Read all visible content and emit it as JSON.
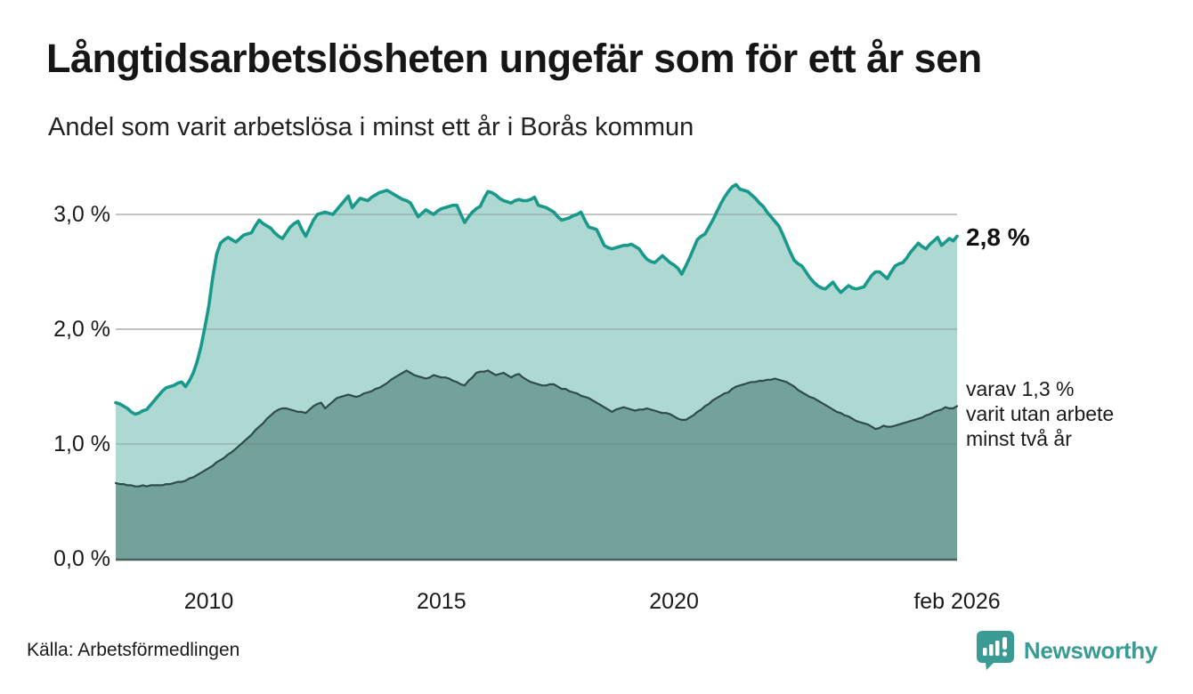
{
  "header": {
    "title": "Långtidsarbetslösheten ungefär som för ett år sen",
    "subtitle": "Andel som varit arbetslösa i minst ett år i Borås kommun"
  },
  "annotations": {
    "latest_total": "2,8 %",
    "secondary_line1": "varav 1,3 %",
    "secondary_line2": "varit utan arbete",
    "secondary_line3": "minst två år"
  },
  "footer": {
    "source": "Källa: Arbetsförmedlingen",
    "brand_name": "Newsworthy",
    "brand_icon": "newsworthy-speech-bubble-bar-chart-icon"
  },
  "colors": {
    "accent_line": "#18998b",
    "fill_light": "#aed8d2",
    "fill_dark": "#73a29b",
    "stroke_dark": "#2e4d49",
    "gridline": "#d9d9d9",
    "gridline_overlay": "rgba(105,120,117,0.38)",
    "axis_baseline": "#4f5f5b",
    "text": "#1a1a1a",
    "brand": "#3a9a94"
  },
  "chart_data": {
    "type": "area",
    "title": "Långtidsarbetslösheten ungefär som för ett år sen",
    "subtitle": "Andel som varit arbetslösa i minst ett år i Borås kommun",
    "x_start": "2008-01",
    "x_end": "2026-02",
    "x_frequency": "monthly",
    "ylim": [
      0,
      3.4
    ],
    "grid": "horizontal-only",
    "legend_position": "right-annotations",
    "y_ticks": [
      {
        "label": "0,0 %",
        "value": 0
      },
      {
        "label": "1,0 %",
        "value": 1
      },
      {
        "label": "2,0 %",
        "value": 2
      },
      {
        "label": "3,0 %",
        "value": 3
      }
    ],
    "x_ticks": [
      {
        "label": "2010",
        "month_index": 24
      },
      {
        "label": "2015",
        "month_index": 84
      },
      {
        "label": "2020",
        "month_index": 144
      },
      {
        "label": "feb 2026",
        "month_index": 217
      }
    ],
    "series": [
      {
        "name": "Arbetslösa minst ett år",
        "latest_value": 2.8,
        "values": [
          1.36,
          1.35,
          1.33,
          1.31,
          1.28,
          1.26,
          1.27,
          1.29,
          1.3,
          1.34,
          1.38,
          1.42,
          1.46,
          1.49,
          1.5,
          1.51,
          1.53,
          1.54,
          1.5,
          1.55,
          1.62,
          1.72,
          1.85,
          2.02,
          2.2,
          2.45,
          2.65,
          2.75,
          2.78,
          2.8,
          2.78,
          2.76,
          2.79,
          2.82,
          2.83,
          2.84,
          2.9,
          2.95,
          2.92,
          2.9,
          2.88,
          2.84,
          2.81,
          2.79,
          2.84,
          2.89,
          2.92,
          2.94,
          2.87,
          2.81,
          2.88,
          2.95,
          3.0,
          3.01,
          3.02,
          3.01,
          3.0,
          3.04,
          3.08,
          3.12,
          3.16,
          3.06,
          3.1,
          3.14,
          3.13,
          3.12,
          3.15,
          3.17,
          3.19,
          3.2,
          3.21,
          3.19,
          3.17,
          3.15,
          3.13,
          3.12,
          3.1,
          3.04,
          2.98,
          3.01,
          3.04,
          3.02,
          3.0,
          3.03,
          3.05,
          3.06,
          3.07,
          3.08,
          3.08,
          3.0,
          2.93,
          2.98,
          3.02,
          3.05,
          3.07,
          3.14,
          3.2,
          3.19,
          3.17,
          3.14,
          3.12,
          3.11,
          3.1,
          3.12,
          3.13,
          3.12,
          3.12,
          3.13,
          3.15,
          3.08,
          3.07,
          3.06,
          3.04,
          3.02,
          2.98,
          2.95,
          2.96,
          2.97,
          2.99,
          3.0,
          3.02,
          2.95,
          2.89,
          2.88,
          2.87,
          2.8,
          2.73,
          2.71,
          2.7,
          2.71,
          2.72,
          2.73,
          2.73,
          2.74,
          2.72,
          2.7,
          2.65,
          2.61,
          2.59,
          2.58,
          2.61,
          2.64,
          2.61,
          2.58,
          2.56,
          2.53,
          2.48,
          2.55,
          2.62,
          2.7,
          2.78,
          2.81,
          2.83,
          2.89,
          2.95,
          3.02,
          3.09,
          3.15,
          3.2,
          3.24,
          3.26,
          3.22,
          3.21,
          3.2,
          3.17,
          3.14,
          3.1,
          3.07,
          3.02,
          2.98,
          2.94,
          2.9,
          2.83,
          2.75,
          2.67,
          2.6,
          2.57,
          2.55,
          2.5,
          2.45,
          2.41,
          2.38,
          2.36,
          2.35,
          2.38,
          2.41,
          2.36,
          2.32,
          2.35,
          2.38,
          2.36,
          2.35,
          2.36,
          2.37,
          2.42,
          2.47,
          2.5,
          2.5,
          2.47,
          2.44,
          2.5,
          2.55,
          2.57,
          2.58,
          2.62,
          2.67,
          2.71,
          2.75,
          2.72,
          2.7,
          2.74,
          2.77,
          2.8,
          2.73,
          2.76,
          2.79,
          2.77,
          2.81
        ]
      },
      {
        "name": "varav utan arbete minst två år",
        "latest_value": 1.3,
        "values": [
          0.66,
          0.65,
          0.65,
          0.64,
          0.64,
          0.63,
          0.63,
          0.64,
          0.63,
          0.64,
          0.64,
          0.64,
          0.64,
          0.65,
          0.65,
          0.66,
          0.67,
          0.67,
          0.68,
          0.7,
          0.71,
          0.73,
          0.75,
          0.77,
          0.79,
          0.81,
          0.84,
          0.86,
          0.88,
          0.91,
          0.93,
          0.96,
          0.99,
          1.02,
          1.05,
          1.08,
          1.12,
          1.15,
          1.18,
          1.22,
          1.25,
          1.28,
          1.3,
          1.31,
          1.31,
          1.3,
          1.29,
          1.28,
          1.28,
          1.27,
          1.3,
          1.33,
          1.35,
          1.36,
          1.31,
          1.34,
          1.37,
          1.4,
          1.41,
          1.42,
          1.43,
          1.42,
          1.41,
          1.42,
          1.44,
          1.45,
          1.46,
          1.48,
          1.49,
          1.51,
          1.53,
          1.56,
          1.58,
          1.6,
          1.62,
          1.64,
          1.62,
          1.6,
          1.59,
          1.58,
          1.57,
          1.58,
          1.6,
          1.59,
          1.58,
          1.58,
          1.57,
          1.55,
          1.54,
          1.52,
          1.51,
          1.55,
          1.58,
          1.62,
          1.63,
          1.63,
          1.64,
          1.62,
          1.6,
          1.61,
          1.62,
          1.6,
          1.58,
          1.6,
          1.61,
          1.58,
          1.56,
          1.54,
          1.53,
          1.52,
          1.51,
          1.51,
          1.52,
          1.52,
          1.5,
          1.48,
          1.48,
          1.46,
          1.45,
          1.44,
          1.42,
          1.41,
          1.4,
          1.38,
          1.36,
          1.34,
          1.32,
          1.3,
          1.28,
          1.3,
          1.31,
          1.32,
          1.31,
          1.3,
          1.29,
          1.3,
          1.3,
          1.31,
          1.3,
          1.29,
          1.28,
          1.27,
          1.27,
          1.26,
          1.24,
          1.22,
          1.21,
          1.21,
          1.23,
          1.25,
          1.28,
          1.3,
          1.33,
          1.35,
          1.38,
          1.4,
          1.42,
          1.44,
          1.45,
          1.48,
          1.5,
          1.51,
          1.52,
          1.53,
          1.54,
          1.54,
          1.55,
          1.55,
          1.56,
          1.56,
          1.57,
          1.56,
          1.55,
          1.54,
          1.52,
          1.5,
          1.47,
          1.45,
          1.43,
          1.41,
          1.4,
          1.38,
          1.36,
          1.34,
          1.32,
          1.3,
          1.28,
          1.27,
          1.25,
          1.24,
          1.22,
          1.2,
          1.19,
          1.18,
          1.17,
          1.15,
          1.13,
          1.14,
          1.16,
          1.15,
          1.15,
          1.16,
          1.17,
          1.18,
          1.19,
          1.2,
          1.21,
          1.22,
          1.23,
          1.25,
          1.26,
          1.28,
          1.29,
          1.3,
          1.32,
          1.31,
          1.31,
          1.33
        ]
      }
    ]
  }
}
